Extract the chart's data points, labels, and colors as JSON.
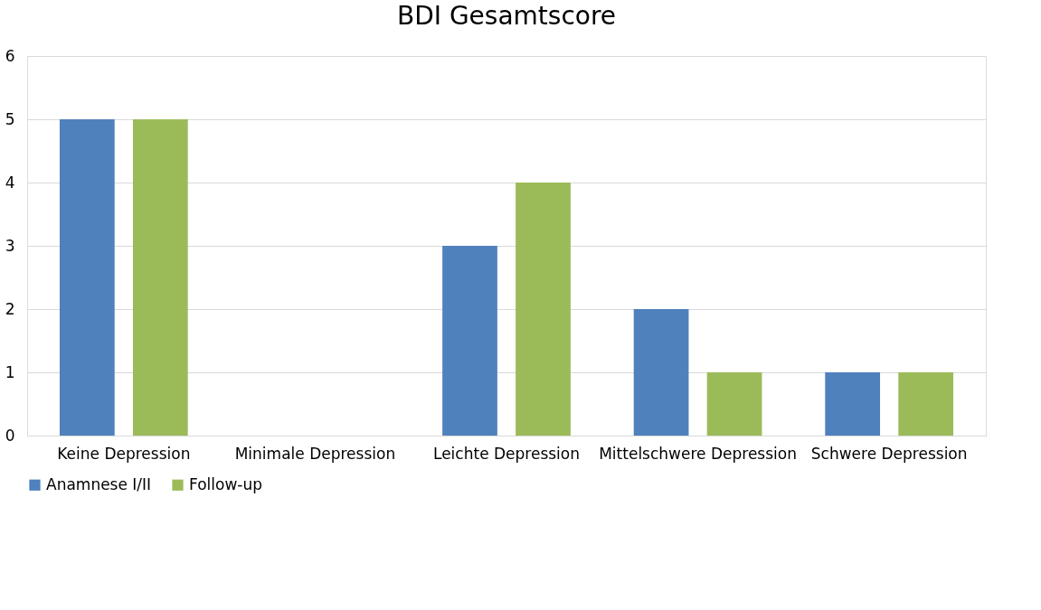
{
  "chart_data": {
    "type": "bar",
    "title": "BDI Gesamtscore",
    "categories": [
      "Keine Depression",
      "Minimale Depression",
      "Leichte Depression",
      "Mittelschwere Depression",
      "Schwere Depression"
    ],
    "series": [
      {
        "name": "Anamnese I/II",
        "color": "#4f81bd",
        "values": [
          5,
          0,
          3,
          2,
          1
        ]
      },
      {
        "name": "Follow-up",
        "color": "#9bbb59",
        "values": [
          5,
          0,
          4,
          1,
          1
        ]
      }
    ],
    "ylim": [
      0,
      6
    ],
    "yticks": [
      0,
      1,
      2,
      3,
      4,
      5,
      6
    ],
    "grid": "y",
    "legend": "bottom"
  }
}
